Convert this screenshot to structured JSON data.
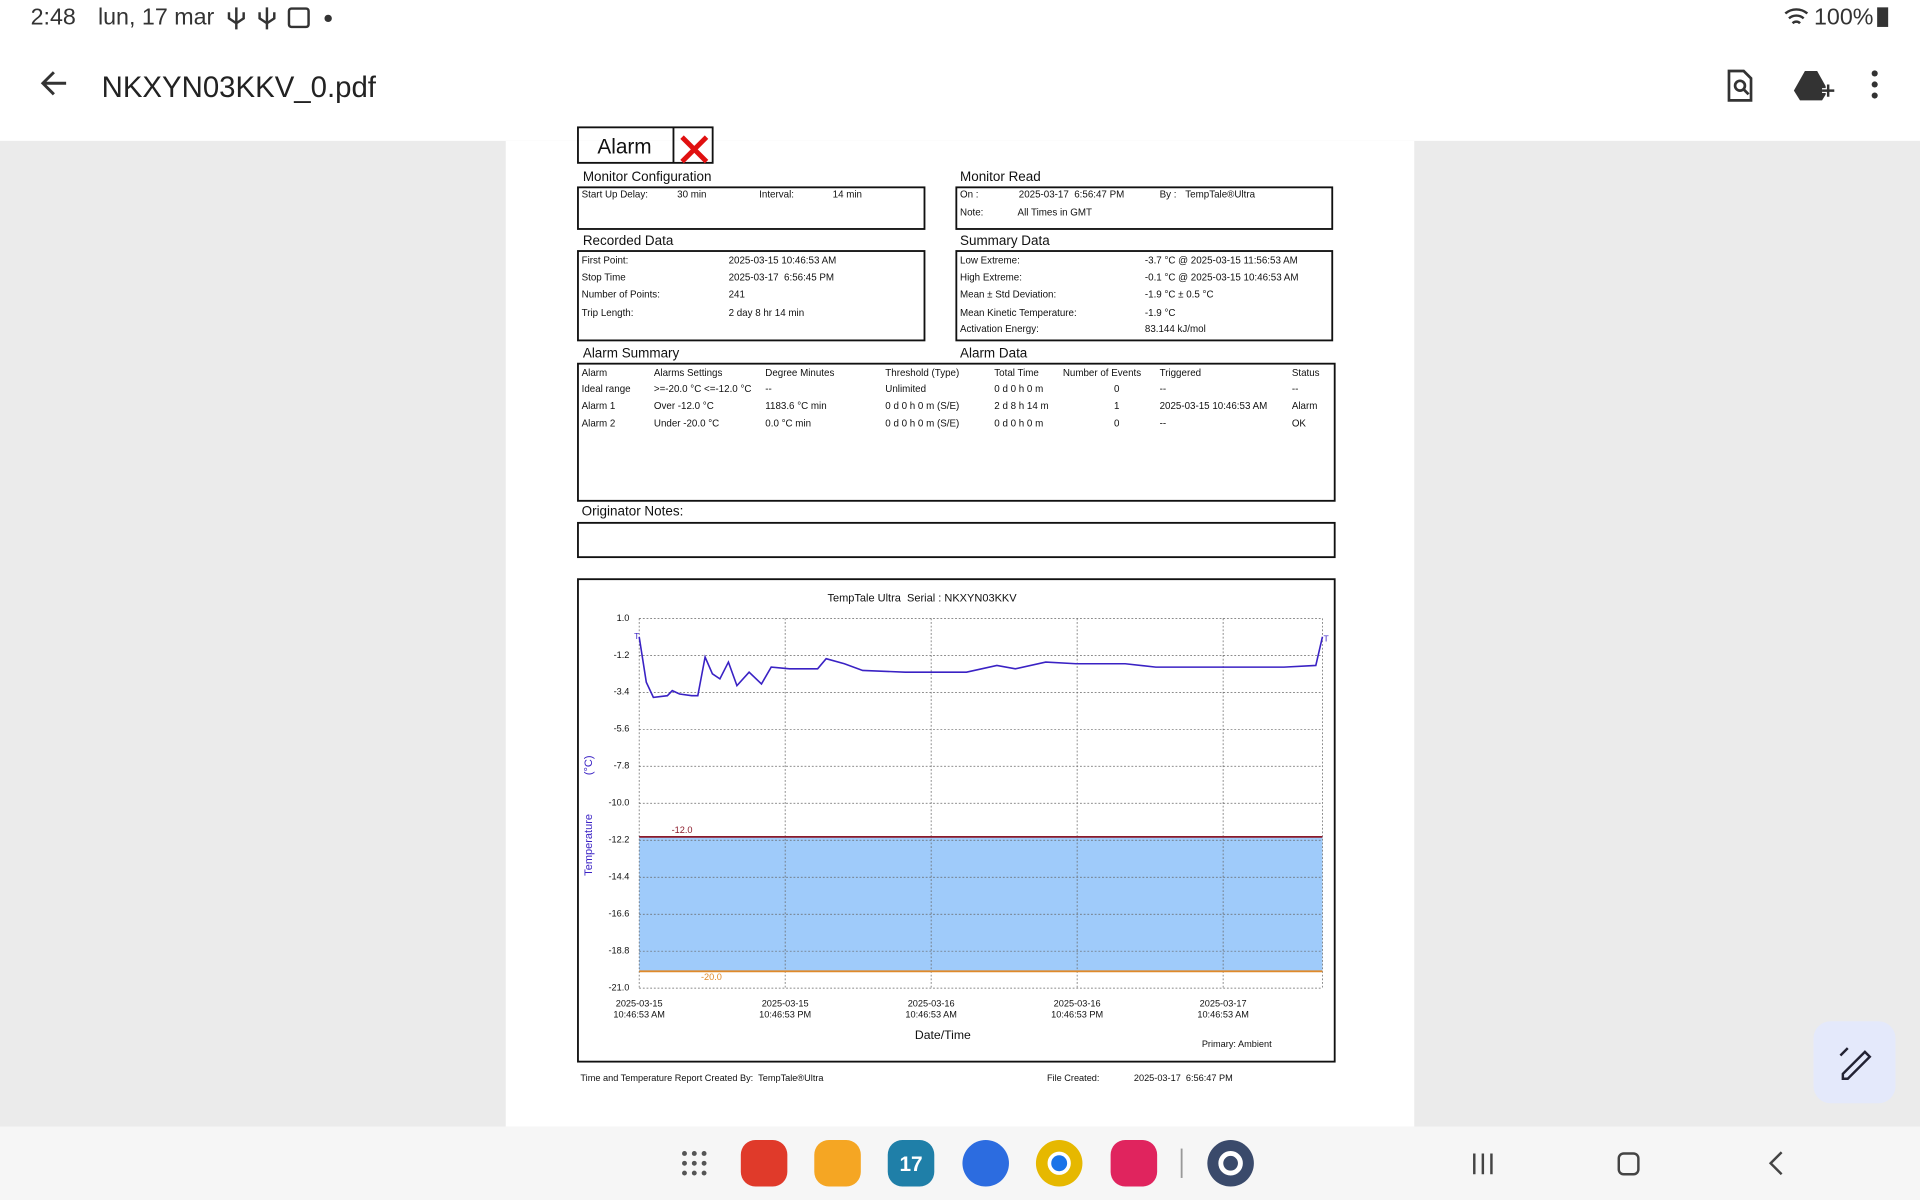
{
  "status_bar": {
    "time": "2:48",
    "date": "lun, 17 mar",
    "battery": "100%"
  },
  "toolbar": {
    "title": "NKXYN03KKV_0.pdf"
  },
  "report": {
    "alarm_label": "Alarm",
    "monitor_configuration": {
      "title": "Monitor Configuration",
      "fields": [
        [
          "Start Up Delay:",
          "30 min"
        ],
        [
          "Interval:",
          "14 min"
        ]
      ]
    },
    "monitor_read": {
      "title": "Monitor Read",
      "rows": [
        [
          "On :",
          "2025-03-17  6:56:47 PM",
          "By :",
          "TempTale®Ultra"
        ],
        [
          "Note:",
          "All Times in GMT"
        ]
      ]
    },
    "recorded_data": {
      "title": "Recorded Data",
      "rows": [
        [
          "First Point:",
          "2025-03-15 10:46:53 AM"
        ],
        [
          "Stop Time",
          "2025-03-17  6:56:45 PM"
        ],
        [
          "Number of Points:",
          "241"
        ],
        [
          "Trip Length:",
          "2 day 8 hr 14 min"
        ]
      ]
    },
    "summary_data": {
      "title": "Summary Data",
      "rows": [
        [
          "Low Extreme:",
          "-3.7 °C @ 2025-03-15 11:56:53 AM"
        ],
        [
          "High Extreme:",
          "-0.1 °C @ 2025-03-15 10:46:53 AM"
        ],
        [
          "Mean ± Std Deviation:",
          "-1.9 °C ± 0.5 °C"
        ],
        [
          "Mean Kinetic Temperature:",
          "-1.9 °C"
        ],
        [
          "Activation Energy:",
          "83.144 kJ/mol"
        ]
      ]
    },
    "alarm_summary": {
      "title": "Alarm Summary",
      "data_title": "Alarm Data",
      "header": [
        "Alarm",
        "Alarms Settings",
        "Degree Minutes",
        "Threshold (Type)",
        "Total Time",
        "Number of Events",
        "Triggered",
        "Status"
      ],
      "rows": [
        [
          "Ideal range",
          ">=-20.0 °C <=-12.0 °C",
          "--",
          "Unlimited",
          "0 d 0 h 0 m",
          "0",
          "--",
          "--"
        ],
        [
          "Alarm 1",
          "Over -12.0 °C",
          "1183.6 °C min",
          "0 d 0 h 0 m (S/E)",
          "2 d 8 h 14 m",
          "1",
          "2025-03-15 10:46:53 AM",
          "Alarm"
        ],
        [
          "Alarm 2",
          "Under -20.0 °C",
          "0.0 °C min",
          "0 d 0 h 0 m (S/E)",
          "0 d 0 h 0 m",
          "0",
          "--",
          "OK"
        ]
      ]
    },
    "originator_notes": "Originator Notes:",
    "footer": {
      "created_by": "Time and Temperature Report Created By:  TempTale®Ultra",
      "file_created_label": "File Created:",
      "file_created": "2025-03-17  6:56:47 PM"
    }
  },
  "chart": {
    "type": "line",
    "title": "TempTale Ultra  Serial : NKXYN03KKV",
    "y_label": "Temperature",
    "y_unit": "(°C)",
    "x_label": "Date/Time",
    "note": "Primary: Ambient",
    "trip_markers": [
      "T",
      "T"
    ],
    "xlim": [
      "2025-03-15T10:46:53",
      "2025-03-17T18:56:45"
    ],
    "xticks": [
      {
        "value": "2025-03-15T10:46:53",
        "label": [
          "2025-03-15",
          "10:46:53 AM"
        ]
      },
      {
        "value": "2025-03-15T22:46:53",
        "label": [
          "2025-03-15",
          "10:46:53 PM"
        ]
      },
      {
        "value": "2025-03-16T10:46:53",
        "label": [
          "2025-03-16",
          "10:46:53 AM"
        ]
      },
      {
        "value": "2025-03-16T22:46:53",
        "label": [
          "2025-03-16",
          "10:46:53 PM"
        ]
      },
      {
        "value": "2025-03-17T10:46:53",
        "label": [
          "2025-03-17",
          "10:46:53 AM"
        ]
      }
    ],
    "ylim": [
      -21.0,
      1.0
    ],
    "yticks": [
      {
        "value": 1,
        "label": "1.0"
      },
      -1.2,
      -3.4,
      -5.6,
      -7.8,
      {
        "value": -10,
        "label": "-10.0"
      },
      -12.2,
      -14.4,
      -16.6,
      -18.8,
      {
        "value": -21,
        "label": "-21.0"
      }
    ],
    "grid": true,
    "limits": [
      {
        "value": -12,
        "label": "-12.0",
        "color": "#8b1a2a"
      },
      {
        "value": -20,
        "label": "-20.0",
        "color": "#e08a2a"
      }
    ],
    "band_color": "#9fcbfa",
    "x": [
      "2025-03-15T10:46:53",
      "2025-03-15T11:22",
      "2025-03-15T11:56:53",
      "2025-03-15T13:06",
      "2025-03-15T13:30",
      "2025-03-15T14:06",
      "2025-03-15T15:06",
      "2025-03-15T15:36",
      "2025-03-15T16:12",
      "2025-03-15T16:48",
      "2025-03-15T17:25",
      "2025-03-15T18:07",
      "2025-03-15T18:49",
      "2025-03-15T19:49",
      "2025-03-15T20:50",
      "2025-03-15T21:38",
      "2025-03-15T23:08",
      "2025-03-16T01:27",
      "2025-03-16T02:09",
      "2025-03-16T03:39",
      "2025-03-16T05:09",
      "2025-03-16T08:39",
      "2025-03-16T13:41",
      "2025-03-16T16:11",
      "2025-03-16T17:42",
      "2025-03-16T20:12",
      "2025-03-16T22:43",
      "2025-03-17T02:44",
      "2025-03-17T05:15",
      "2025-03-17T10:46",
      "2025-03-17T15:47",
      "2025-03-17T18:24",
      "2025-03-17T18:56:45"
    ],
    "series": [
      {
        "color": "#3a22c4",
        "values": [
          -0.1,
          -2.8,
          -3.7,
          -3.6,
          -3.3,
          -3.5,
          -3.6,
          -3.6,
          -1.3,
          -2.3,
          -2.6,
          -1.6,
          -3.0,
          -2.2,
          -2.9,
          -1.9,
          -2.0,
          -2.0,
          -1.4,
          -1.7,
          -2.1,
          -2.2,
          -2.2,
          -1.8,
          -2.0,
          -1.6,
          -1.7,
          -1.7,
          -1.9,
          -1.9,
          -1.9,
          -1.8,
          -0.1
        ]
      }
    ]
  },
  "dock": {
    "calendar_day": "17"
  }
}
